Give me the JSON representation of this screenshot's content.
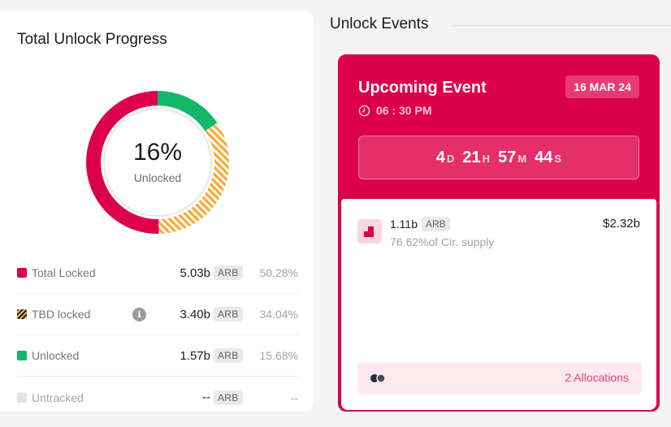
{
  "progress": {
    "title": "Total Unlock Progress",
    "percent_label": "16%",
    "center_label": "Unlocked",
    "legend": [
      {
        "name": "Total Locked",
        "amount": "5.03b",
        "token": "ARB",
        "pct": "50.28%"
      },
      {
        "name": "TBD locked",
        "amount": "3.40b",
        "token": "ARB",
        "pct": "34.04%"
      },
      {
        "name": "Unlocked",
        "amount": "1.57b",
        "token": "ARB",
        "pct": "15.68%"
      },
      {
        "name": "Untracked",
        "amount": "--",
        "token": "ARB",
        "pct": "--"
      }
    ],
    "segments": [
      {
        "label": "Unlocked",
        "percent": 15.68,
        "color": "#12b76a"
      },
      {
        "label": "TBD locked",
        "percent": 34.04,
        "color": "#f2a93b"
      },
      {
        "label": "Total Locked",
        "percent": 50.28,
        "color": "#dc004a"
      }
    ]
  },
  "events": {
    "title": "Unlock Events",
    "upcoming": {
      "title": "Upcoming Event",
      "date": "16 MAR 24",
      "time": "06 : 30 PM",
      "countdown": {
        "d": "4",
        "h": "21",
        "m": "57",
        "s": "44",
        "d_unit": "D",
        "h_unit": "H",
        "m_unit": "M",
        "s_unit": "S"
      },
      "amount": "1.11b",
      "token": "ARB",
      "supply": "76.62%of Cir. supply",
      "value": "$2.32b",
      "allocations": "2 Allocations"
    }
  },
  "colors": {
    "accent": "#dc004a",
    "unlocked": "#12b76a",
    "tbd": "#f2a93b"
  }
}
